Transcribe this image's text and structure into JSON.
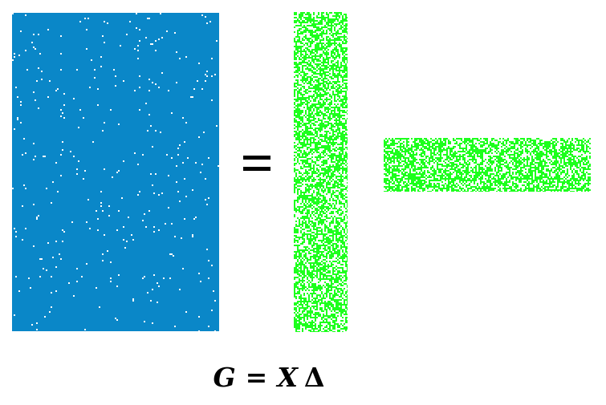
{
  "colors": {
    "g_matrix": "#0a87c8",
    "factor_matrices": "#1dff1d",
    "background": "#ffffff",
    "text": "#000000"
  },
  "equation": {
    "lhs": "G",
    "equals": "=",
    "factor_1": "X",
    "factor_2": "Δ"
  }
}
